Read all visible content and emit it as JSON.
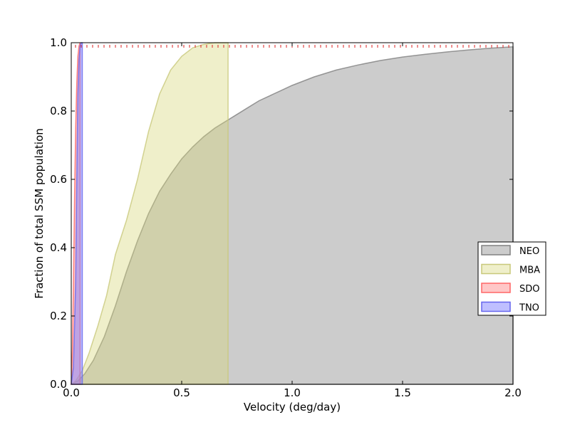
{
  "chart_data": {
    "type": "area",
    "title": "",
    "xlabel": "Velocity (deg/day)",
    "ylabel": "Fraction of total SSM population",
    "xlim": [
      0.0,
      2.0
    ],
    "ylim": [
      0.0,
      1.0
    ],
    "xticks": [
      "0.0",
      "0.5",
      "1.0",
      "1.5",
      "2.0"
    ],
    "yticks": [
      "0.0",
      "0.2",
      "0.4",
      "0.6",
      "0.8",
      "1.0"
    ],
    "legend_position": "right",
    "grid": false,
    "series": [
      {
        "name": "NEO",
        "fill": "#999999",
        "stroke": "#808080",
        "opacity": 0.5,
        "x": [
          0.0,
          0.03,
          0.06,
          0.1,
          0.15,
          0.2,
          0.25,
          0.3,
          0.35,
          0.4,
          0.45,
          0.5,
          0.55,
          0.6,
          0.65,
          0.7,
          0.75,
          0.8,
          0.85,
          0.9,
          1.0,
          1.1,
          1.2,
          1.3,
          1.4,
          1.5,
          1.6,
          1.7,
          1.8,
          1.9,
          2.0
        ],
        "y": [
          0.0,
          0.01,
          0.03,
          0.07,
          0.14,
          0.23,
          0.33,
          0.42,
          0.5,
          0.565,
          0.615,
          0.66,
          0.695,
          0.725,
          0.75,
          0.77,
          0.79,
          0.81,
          0.83,
          0.845,
          0.875,
          0.9,
          0.92,
          0.935,
          0.948,
          0.958,
          0.966,
          0.973,
          0.979,
          0.984,
          0.988
        ]
      },
      {
        "name": "MBA",
        "fill": "#d8d87a",
        "stroke": "#c8c87a",
        "opacity": 0.4,
        "x": [
          0.0,
          0.02,
          0.05,
          0.08,
          0.12,
          0.16,
          0.2,
          0.25,
          0.3,
          0.35,
          0.4,
          0.45,
          0.5,
          0.55,
          0.6,
          0.65,
          0.7,
          0.71
        ],
        "y": [
          0.0,
          0.01,
          0.04,
          0.09,
          0.17,
          0.26,
          0.38,
          0.48,
          0.6,
          0.74,
          0.85,
          0.92,
          0.96,
          0.985,
          0.995,
          1.0,
          1.0,
          1.0
        ]
      },
      {
        "name": "SDO",
        "fill": "#ff9090",
        "stroke": "#ff6666",
        "opacity": 0.5,
        "x": [
          0.0,
          0.005,
          0.01,
          0.015,
          0.02,
          0.025,
          0.03,
          0.035,
          0.04
        ],
        "y": [
          0.0,
          0.1,
          0.3,
          0.55,
          0.75,
          0.88,
          0.96,
          0.99,
          1.0
        ]
      },
      {
        "name": "TNO",
        "fill": "#8080ff",
        "stroke": "#6666ee",
        "opacity": 0.5,
        "x": [
          0.0,
          0.01,
          0.02,
          0.025,
          0.03,
          0.035,
          0.04,
          0.045,
          0.05
        ],
        "y": [
          0.0,
          0.05,
          0.3,
          0.6,
          0.85,
          0.95,
          0.99,
          1.0,
          1.0
        ]
      }
    ]
  }
}
